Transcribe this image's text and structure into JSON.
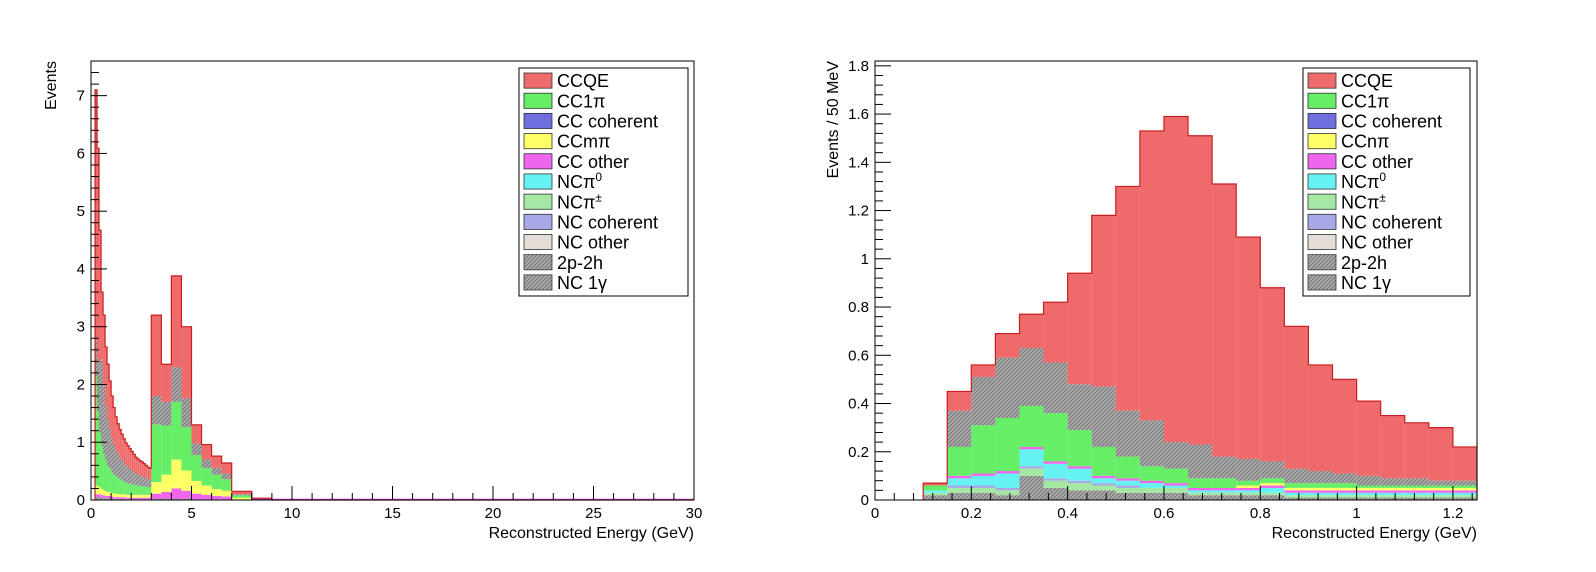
{
  "colors": {
    "CCQE": "#ef6b6b",
    "CC1pi": "#66ee66",
    "CC coherent": "#6f6fe0",
    "CCmpi": "#ffff66",
    "CC other": "#ee66ee",
    "NCpi0": "#66f2f2",
    "NCpipm": "#a4e8a4",
    "NC coherent": "#a8a8e6",
    "NC other": "#e4dcd6",
    "2p-2h": "#a8a8a8",
    "NC 1gamma": "#a8a8a8"
  },
  "chart_data": [
    {
      "type": "bar",
      "stacked": true,
      "title": "",
      "xlabel": "Reconstructed Energy (GeV)",
      "ylabel": "Events",
      "xlim": [
        0,
        30
      ],
      "ylim": [
        0,
        7.6
      ],
      "xticks": [
        0,
        5,
        10,
        15,
        20,
        25,
        30
      ],
      "yticks": [
        0,
        1,
        2,
        3,
        4,
        5,
        6,
        7
      ],
      "legend_position": "top-right",
      "legend": [
        {
          "key": "CCQE",
          "label": "CCQE"
        },
        {
          "key": "CC1pi",
          "label": "CC1π"
        },
        {
          "key": "CC coherent",
          "label": "CC coherent"
        },
        {
          "key": "CCmpi",
          "label": "CCmπ"
        },
        {
          "key": "CC other",
          "label": "CC other"
        },
        {
          "key": "NCpi0",
          "label": "NCπ",
          "sup": "0"
        },
        {
          "key": "NCpipm",
          "label": "NCπ",
          "sup": "±"
        },
        {
          "key": "NC coherent",
          "label": "NC coherent"
        },
        {
          "key": "NC other",
          "label": "NC other"
        },
        {
          "key": "2p-2h",
          "label": "2p-2h"
        },
        {
          "key": "NC 1gamma",
          "label": "NC 1γ"
        }
      ],
      "total": {
        "x": [
          0.25,
          0.35,
          0.45,
          0.55,
          0.65,
          0.75,
          0.85,
          0.95,
          1.05,
          1.15,
          1.25,
          1.35,
          1.45,
          1.55,
          1.65,
          1.75,
          1.85,
          1.95,
          2.05,
          2.15,
          2.25,
          2.35,
          2.45,
          2.55,
          2.65,
          2.75,
          2.85,
          2.95,
          3.25,
          3.75,
          4.25,
          4.75,
          5.25,
          5.75,
          6.25,
          6.75,
          7.5,
          8.5,
          9.5,
          12.5,
          17.5,
          22.5,
          27.5
        ],
        "edges_note": "",
        "bins": [
          [
            0.2,
            0.3
          ],
          [
            0.3,
            0.4
          ],
          [
            0.4,
            0.5
          ],
          [
            0.5,
            0.6
          ],
          [
            0.6,
            0.7
          ],
          [
            0.7,
            0.8
          ],
          [
            0.8,
            0.9
          ],
          [
            0.9,
            1.0
          ],
          [
            1.0,
            1.1
          ],
          [
            1.1,
            1.2
          ],
          [
            1.2,
            1.3
          ],
          [
            1.3,
            1.4
          ],
          [
            1.4,
            1.5
          ],
          [
            1.5,
            1.6
          ],
          [
            1.6,
            1.7
          ],
          [
            1.7,
            1.8
          ],
          [
            1.8,
            1.9
          ],
          [
            1.9,
            2.0
          ],
          [
            2.0,
            2.1
          ],
          [
            2.1,
            2.2
          ],
          [
            2.2,
            2.3
          ],
          [
            2.3,
            2.4
          ],
          [
            2.4,
            2.5
          ],
          [
            2.5,
            2.6
          ],
          [
            2.6,
            2.7
          ],
          [
            2.7,
            2.8
          ],
          [
            2.8,
            2.9
          ],
          [
            2.9,
            3.0
          ],
          [
            3.0,
            3.5
          ],
          [
            3.5,
            4.0
          ],
          [
            4.0,
            4.5
          ],
          [
            4.5,
            5.0
          ],
          [
            5.0,
            5.5
          ],
          [
            5.5,
            6.0
          ],
          [
            6.0,
            6.5
          ],
          [
            6.5,
            7.0
          ],
          [
            7.0,
            8.0
          ],
          [
            8.0,
            9.0
          ],
          [
            9.0,
            10.0
          ],
          [
            10.0,
            15.0
          ],
          [
            15.0,
            20.0
          ],
          [
            20.0,
            25.0
          ],
          [
            25.0,
            30.0
          ]
        ]
      },
      "series": [
        {
          "key": "NC 1gamma",
          "values": [
            0.05,
            0.05,
            0.05,
            0.04,
            0.04,
            0.03,
            0.03,
            0.03,
            0.02,
            0.02,
            0.02,
            0.02,
            0.02,
            0.02,
            0.02,
            0.01,
            0.01,
            0.01,
            0.01,
            0.01,
            0.01,
            0.01,
            0.01,
            0.01,
            0.01,
            0.01,
            0.01,
            0.01,
            0.02,
            0.02,
            0.02,
            0.02,
            0.01,
            0.01,
            0.01,
            0.01,
            0.0,
            0.0,
            0.0,
            0.0,
            0.0,
            0.0,
            0.0
          ]
        },
        {
          "key": "CC other",
          "values": [
            0.05,
            0.05,
            0.05,
            0.05,
            0.04,
            0.04,
            0.04,
            0.04,
            0.04,
            0.03,
            0.03,
            0.03,
            0.03,
            0.03,
            0.03,
            0.03,
            0.03,
            0.03,
            0.03,
            0.03,
            0.03,
            0.03,
            0.03,
            0.03,
            0.03,
            0.03,
            0.03,
            0.03,
            0.09,
            0.12,
            0.18,
            0.14,
            0.1,
            0.08,
            0.06,
            0.05,
            0.01,
            0.0,
            0.0,
            0.0,
            0.0,
            0.0,
            0.0
          ]
        },
        {
          "key": "CCmpi",
          "values": [
            0.15,
            0.14,
            0.12,
            0.1,
            0.09,
            0.08,
            0.07,
            0.07,
            0.06,
            0.06,
            0.06,
            0.05,
            0.05,
            0.05,
            0.05,
            0.05,
            0.05,
            0.05,
            0.05,
            0.05,
            0.05,
            0.05,
            0.05,
            0.05,
            0.05,
            0.05,
            0.05,
            0.05,
            0.2,
            0.3,
            0.5,
            0.35,
            0.22,
            0.16,
            0.12,
            0.1,
            0.03,
            0.01,
            0.0,
            0.0,
            0.0,
            0.0,
            0.0
          ]
        },
        {
          "key": "CC1pi",
          "values": [
            1.9,
            1.3,
            0.95,
            0.75,
            0.62,
            0.52,
            0.45,
            0.4,
            0.36,
            0.33,
            0.3,
            0.28,
            0.26,
            0.24,
            0.22,
            0.21,
            0.2,
            0.19,
            0.18,
            0.17,
            0.16,
            0.16,
            0.15,
            0.15,
            0.14,
            0.14,
            0.13,
            0.13,
            1.0,
            0.85,
            1.0,
            0.75,
            0.45,
            0.3,
            0.25,
            0.2,
            0.04,
            0.01,
            0.0,
            0.0,
            0.0,
            0.0,
            0.0
          ]
        },
        {
          "key": "2p-2h",
          "values": [
            0.6,
            0.9,
            1.2,
            1.5,
            1.2,
            0.95,
            0.8,
            0.7,
            0.6,
            0.52,
            0.46,
            0.42,
            0.38,
            0.35,
            0.32,
            0.3,
            0.28,
            0.26,
            0.24,
            0.22,
            0.2,
            0.19,
            0.18,
            0.17,
            0.16,
            0.15,
            0.14,
            0.13,
            0.49,
            0.41,
            0.6,
            0.5,
            0.2,
            0.15,
            0.12,
            0.1,
            0.02,
            0.0,
            0.0,
            0.0,
            0.0,
            0.0,
            0.0
          ]
        },
        {
          "key": "CCQE",
          "values": [
            4.35,
            3.65,
            2.3,
            1.16,
            1.21,
            1.03,
            0.96,
            0.82,
            0.72,
            0.64,
            0.57,
            0.52,
            0.48,
            0.45,
            0.42,
            0.39,
            0.37,
            0.35,
            0.33,
            0.31,
            0.29,
            0.27,
            0.26,
            0.25,
            0.24,
            0.22,
            0.21,
            0.2,
            1.4,
            0.65,
            1.58,
            1.24,
            0.32,
            0.26,
            0.2,
            0.18,
            0.05,
            0.01,
            0.0,
            0.0,
            0.0,
            0.0,
            0.0
          ]
        }
      ]
    },
    {
      "type": "bar",
      "stacked": true,
      "title": "",
      "xlabel": "Reconstructed Energy (GeV)",
      "ylabel": "Events / 50 MeV",
      "xlim": [
        0,
        1.25
      ],
      "ylim": [
        0,
        1.82
      ],
      "xticks": [
        0,
        0.2,
        0.4,
        0.6,
        0.8,
        1,
        1.2
      ],
      "xtick_labels": [
        "0",
        "0.2",
        "0.4",
        "0.6",
        "0.8",
        "1",
        "1.2"
      ],
      "yticks": [
        0,
        0.2,
        0.4,
        0.6,
        0.8,
        1,
        1.2,
        1.4,
        1.6,
        1.8
      ],
      "ytick_labels": [
        "0",
        "0.2",
        "0.4",
        "0.6",
        "0.8",
        "1",
        "1.2",
        "1.4",
        "1.6",
        "1.8"
      ],
      "legend_position": "top-right",
      "legend": [
        {
          "key": "CCQE",
          "label": "CCQE"
        },
        {
          "key": "CC1pi",
          "label": "CC1π"
        },
        {
          "key": "CC coherent",
          "label": "CC coherent"
        },
        {
          "key": "CCmpi",
          "label": "CCnπ"
        },
        {
          "key": "CC other",
          "label": "CC other"
        },
        {
          "key": "NCpi0",
          "label": "NCπ",
          "sup": "0"
        },
        {
          "key": "NCpipm",
          "label": "NCπ",
          "sup": "±"
        },
        {
          "key": "NC coherent",
          "label": "NC coherent"
        },
        {
          "key": "NC other",
          "label": "NC other"
        },
        {
          "key": "2p-2h",
          "label": "2p-2h"
        },
        {
          "key": "NC 1gamma",
          "label": "NC 1γ"
        }
      ],
      "bin_width": 0.05,
      "x": [
        0.125,
        0.175,
        0.225,
        0.275,
        0.325,
        0.375,
        0.425,
        0.475,
        0.525,
        0.575,
        0.625,
        0.675,
        0.725,
        0.775,
        0.825,
        0.875,
        0.925,
        0.975,
        1.025,
        1.075,
        1.125,
        1.175,
        1.225
      ],
      "series": [
        {
          "key": "NC 1gamma",
          "values": [
            0.02,
            0.03,
            0.03,
            0.02,
            0.1,
            0.05,
            0.04,
            0.04,
            0.03,
            0.03,
            0.03,
            0.02,
            0.02,
            0.02,
            0.02,
            0.01,
            0.01,
            0.01,
            0.01,
            0.01,
            0.01,
            0.01,
            0.01
          ]
        },
        {
          "key": "NCpipm",
          "values": [
            0.01,
            0.02,
            0.02,
            0.02,
            0.03,
            0.03,
            0.03,
            0.02,
            0.02,
            0.02,
            0.02,
            0.01,
            0.01,
            0.01,
            0.01,
            0.01,
            0.01,
            0.01,
            0.01,
            0.01,
            0.01,
            0.01,
            0.01
          ]
        },
        {
          "key": "NC coherent",
          "values": [
            0.0,
            0.01,
            0.01,
            0.01,
            0.01,
            0.01,
            0.01,
            0.01,
            0.01,
            0.0,
            0.0,
            0.0,
            0.0,
            0.0,
            0.0,
            0.0,
            0.0,
            0.0,
            0.0,
            0.0,
            0.0,
            0.0,
            0.0
          ]
        },
        {
          "key": "NCpi0",
          "values": [
            0.01,
            0.03,
            0.04,
            0.06,
            0.07,
            0.06,
            0.05,
            0.02,
            0.02,
            0.02,
            0.01,
            0.01,
            0.01,
            0.01,
            0.02,
            0.01,
            0.01,
            0.01,
            0.01,
            0.01,
            0.01,
            0.01,
            0.01
          ]
        },
        {
          "key": "CC other",
          "values": [
            0.0,
            0.01,
            0.01,
            0.01,
            0.01,
            0.01,
            0.01,
            0.01,
            0.01,
            0.01,
            0.01,
            0.01,
            0.01,
            0.01,
            0.01,
            0.01,
            0.01,
            0.01,
            0.01,
            0.01,
            0.01,
            0.01,
            0.01
          ]
        },
        {
          "key": "CCmpi",
          "values": [
            0.0,
            0.0,
            0.0,
            0.0,
            0.0,
            0.0,
            0.0,
            0.0,
            0.0,
            0.0,
            0.0,
            0.0,
            0.0,
            0.01,
            0.01,
            0.01,
            0.01,
            0.01,
            0.01,
            0.01,
            0.01,
            0.01,
            0.01
          ]
        },
        {
          "key": "CC1pi",
          "values": [
            0.02,
            0.12,
            0.2,
            0.22,
            0.17,
            0.2,
            0.15,
            0.12,
            0.09,
            0.06,
            0.06,
            0.04,
            0.04,
            0.02,
            0.02,
            0.02,
            0.02,
            0.02,
            0.01,
            0.01,
            0.01,
            0.01,
            0.01
          ]
        },
        {
          "key": "2p-2h",
          "values": [
            0.0,
            0.15,
            0.2,
            0.25,
            0.24,
            0.21,
            0.19,
            0.25,
            0.19,
            0.19,
            0.11,
            0.14,
            0.09,
            0.09,
            0.07,
            0.06,
            0.05,
            0.04,
            0.04,
            0.03,
            0.03,
            0.02,
            0.02
          ]
        },
        {
          "key": "CCQE",
          "values": [
            0.01,
            0.08,
            0.05,
            0.1,
            0.14,
            0.25,
            0.46,
            0.71,
            0.93,
            1.2,
            1.35,
            1.28,
            1.13,
            0.92,
            0.72,
            0.59,
            0.44,
            0.39,
            0.31,
            0.26,
            0.23,
            0.22,
            0.14
          ]
        }
      ]
    }
  ]
}
